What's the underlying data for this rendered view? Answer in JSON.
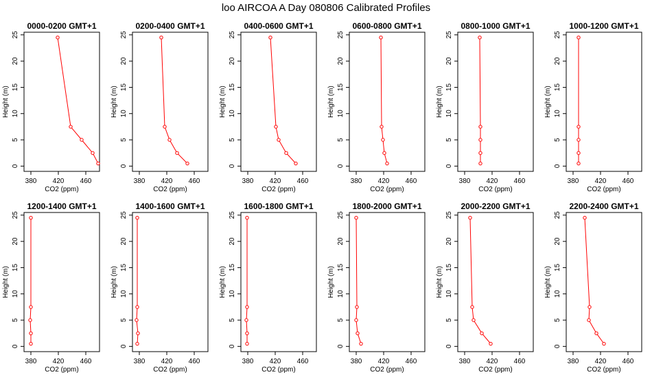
{
  "title": "loo AIRCOA A  Day 080806  Calibrated Profiles",
  "colors": {
    "line": "#ff0000",
    "axis": "#000000",
    "background": "#ffffff"
  },
  "chart_data": [
    {
      "type": "line",
      "title": "0000-0200 GMT+1",
      "xlabel": "CO2 (ppm)",
      "ylabel": "Height (m)",
      "xlim": [
        370,
        480
      ],
      "ylim": [
        -1,
        25.5
      ],
      "xticks": [
        380,
        420,
        460
      ],
      "yticks": [
        0,
        5,
        10,
        15,
        20,
        25
      ],
      "points": [
        {
          "x": 478,
          "y": 0.5
        },
        {
          "x": 470,
          "y": 2.5
        },
        {
          "x": 454,
          "y": 5
        },
        {
          "x": 438,
          "y": 7.5
        },
        {
          "x": 419,
          "y": 24.5
        }
      ]
    },
    {
      "type": "line",
      "title": "0200-0400 GMT+1",
      "xlabel": "CO2 (ppm)",
      "ylabel": "Height (m)",
      "xlim": [
        370,
        480
      ],
      "ylim": [
        -1,
        25.5
      ],
      "xticks": [
        380,
        420,
        460
      ],
      "yticks": [
        0,
        5,
        10,
        15,
        20,
        25
      ],
      "points": [
        {
          "x": 450,
          "y": 0.5
        },
        {
          "x": 435,
          "y": 2.5
        },
        {
          "x": 424,
          "y": 5
        },
        {
          "x": 417,
          "y": 7.5
        },
        {
          "x": 412,
          "y": 24.5
        }
      ]
    },
    {
      "type": "line",
      "title": "0400-0600 GMT+1",
      "xlabel": "CO2 (ppm)",
      "ylabel": "Height (m)",
      "xlim": [
        370,
        480
      ],
      "ylim": [
        -1,
        25.5
      ],
      "xticks": [
        380,
        420,
        460
      ],
      "yticks": [
        0,
        5,
        10,
        15,
        20,
        25
      ],
      "points": [
        {
          "x": 450,
          "y": 0.5
        },
        {
          "x": 436,
          "y": 2.5
        },
        {
          "x": 425,
          "y": 5
        },
        {
          "x": 421,
          "y": 7.5
        },
        {
          "x": 413,
          "y": 24.5
        }
      ]
    },
    {
      "type": "line",
      "title": "0600-0800 GMT+1",
      "xlabel": "CO2 (ppm)",
      "ylabel": "Height (m)",
      "xlim": [
        370,
        480
      ],
      "ylim": [
        -1,
        25.5
      ],
      "xticks": [
        380,
        420,
        460
      ],
      "yticks": [
        0,
        5,
        10,
        15,
        20,
        25
      ],
      "points": [
        {
          "x": 425,
          "y": 0.5
        },
        {
          "x": 421,
          "y": 2.5
        },
        {
          "x": 419,
          "y": 5
        },
        {
          "x": 417,
          "y": 7.5
        },
        {
          "x": 416,
          "y": 24.5
        }
      ]
    },
    {
      "type": "line",
      "title": "0800-1000 GMT+1",
      "xlabel": "CO2 (ppm)",
      "ylabel": "Height (m)",
      "xlim": [
        370,
        480
      ],
      "ylim": [
        -1,
        25.5
      ],
      "xticks": [
        380,
        420,
        460
      ],
      "yticks": [
        0,
        5,
        10,
        15,
        20,
        25
      ],
      "points": [
        {
          "x": 403,
          "y": 0.5
        },
        {
          "x": 403,
          "y": 2.5
        },
        {
          "x": 403,
          "y": 5
        },
        {
          "x": 403,
          "y": 7.5
        },
        {
          "x": 402,
          "y": 24.5
        }
      ]
    },
    {
      "type": "line",
      "title": "1000-1200 GMT+1",
      "xlabel": "CO2 (ppm)",
      "ylabel": "Height (m)",
      "xlim": [
        370,
        480
      ],
      "ylim": [
        -1,
        25.5
      ],
      "xticks": [
        380,
        420,
        460
      ],
      "yticks": [
        0,
        5,
        10,
        15,
        20,
        25
      ],
      "points": [
        {
          "x": 388,
          "y": 0.5
        },
        {
          "x": 388,
          "y": 2.5
        },
        {
          "x": 388,
          "y": 5
        },
        {
          "x": 388,
          "y": 7.5
        },
        {
          "x": 388,
          "y": 24.5
        }
      ]
    },
    {
      "type": "line",
      "title": "1200-1400 GMT+1",
      "xlabel": "CO2 (ppm)",
      "ylabel": "Height (m)",
      "xlim": [
        370,
        480
      ],
      "ylim": [
        -1,
        25.5
      ],
      "xticks": [
        380,
        420,
        460
      ],
      "yticks": [
        0,
        5,
        10,
        15,
        20,
        25
      ],
      "points": [
        {
          "x": 380,
          "y": 0.5
        },
        {
          "x": 380,
          "y": 2.5
        },
        {
          "x": 379,
          "y": 5
        },
        {
          "x": 380,
          "y": 7.5
        },
        {
          "x": 380,
          "y": 24.5
        }
      ]
    },
    {
      "type": "line",
      "title": "1400-1600 GMT+1",
      "xlabel": "CO2 (ppm)",
      "ylabel": "Height (m)",
      "xlim": [
        370,
        480
      ],
      "ylim": [
        -1,
        25.5
      ],
      "xticks": [
        380,
        420,
        460
      ],
      "yticks": [
        0,
        5,
        10,
        15,
        20,
        25
      ],
      "points": [
        {
          "x": 377,
          "y": 0.5
        },
        {
          "x": 378,
          "y": 2.5
        },
        {
          "x": 376,
          "y": 5
        },
        {
          "x": 377,
          "y": 7.5
        },
        {
          "x": 377,
          "y": 24.5
        }
      ]
    },
    {
      "type": "line",
      "title": "1600-1800 GMT+1",
      "xlabel": "CO2 (ppm)",
      "ylabel": "Height (m)",
      "xlim": [
        370,
        480
      ],
      "ylim": [
        -1,
        25.5
      ],
      "xticks": [
        380,
        420,
        460
      ],
      "yticks": [
        0,
        5,
        10,
        15,
        20,
        25
      ],
      "points": [
        {
          "x": 379,
          "y": 0.5
        },
        {
          "x": 379,
          "y": 2.5
        },
        {
          "x": 378,
          "y": 5
        },
        {
          "x": 379,
          "y": 7.5
        },
        {
          "x": 379,
          "y": 24.5
        }
      ]
    },
    {
      "type": "line",
      "title": "1800-2000 GMT+1",
      "xlabel": "CO2 (ppm)",
      "ylabel": "Height (m)",
      "xlim": [
        370,
        480
      ],
      "ylim": [
        -1,
        25.5
      ],
      "xticks": [
        380,
        420,
        460
      ],
      "yticks": [
        0,
        5,
        10,
        15,
        20,
        25
      ],
      "points": [
        {
          "x": 387,
          "y": 0.5
        },
        {
          "x": 382,
          "y": 2.5
        },
        {
          "x": 380,
          "y": 5
        },
        {
          "x": 381,
          "y": 7.5
        },
        {
          "x": 380,
          "y": 24.5
        }
      ]
    },
    {
      "type": "line",
      "title": "2000-2200 GMT+1",
      "xlabel": "CO2 (ppm)",
      "ylabel": "Height (m)",
      "xlim": [
        370,
        480
      ],
      "ylim": [
        -1,
        25.5
      ],
      "xticks": [
        380,
        420,
        460
      ],
      "yticks": [
        0,
        5,
        10,
        15,
        20,
        25
      ],
      "points": [
        {
          "x": 418,
          "y": 0.5
        },
        {
          "x": 405,
          "y": 2.5
        },
        {
          "x": 393,
          "y": 5
        },
        {
          "x": 391,
          "y": 7.5
        },
        {
          "x": 388,
          "y": 24.5
        }
      ]
    },
    {
      "type": "line",
      "title": "2200-2400 GMT+1",
      "xlabel": "CO2 (ppm)",
      "ylabel": "Height (m)",
      "xlim": [
        370,
        480
      ],
      "ylim": [
        -1,
        25.5
      ],
      "xticks": [
        380,
        420,
        460
      ],
      "yticks": [
        0,
        5,
        10,
        15,
        20,
        25
      ],
      "points": [
        {
          "x": 425,
          "y": 0.5
        },
        {
          "x": 414,
          "y": 2.5
        },
        {
          "x": 403,
          "y": 5
        },
        {
          "x": 404,
          "y": 7.5
        },
        {
          "x": 397,
          "y": 24.5
        }
      ]
    }
  ]
}
